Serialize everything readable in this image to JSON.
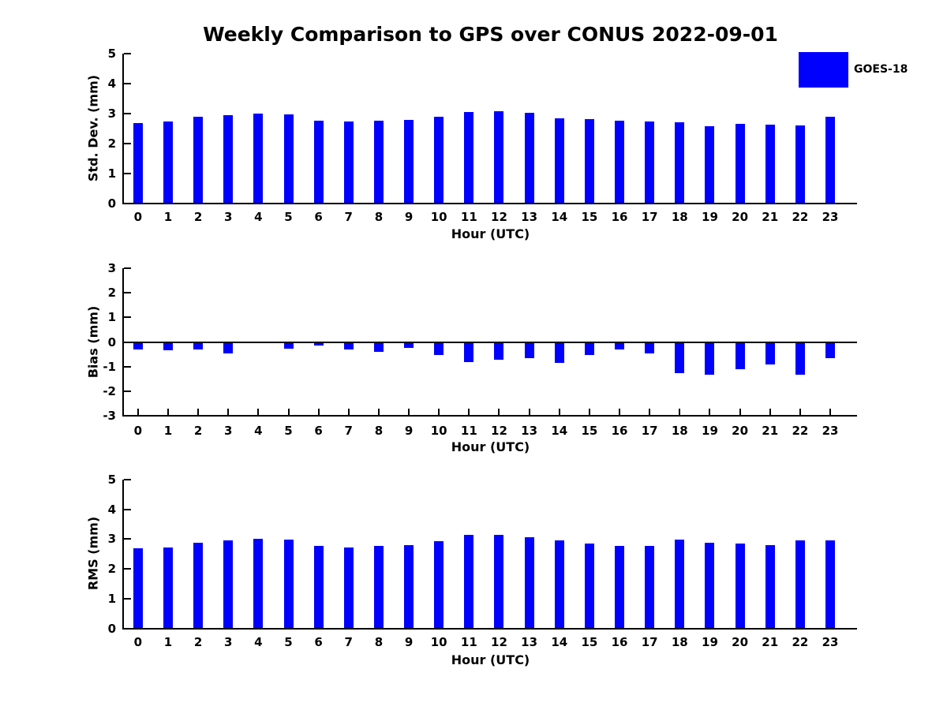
{
  "figure": {
    "title": "Weekly Comparison to GPS over CONUS 2022-09-01",
    "legend": {
      "label": "GOES-18",
      "color": "#0000ff"
    },
    "background_color": "#ffffff",
    "axis_color": "#000000"
  },
  "chart_data": [
    {
      "type": "bar",
      "series_name": "GOES-18",
      "bar_color": "#0000ff",
      "xlabel": "Hour (UTC)",
      "ylabel": "Std. Dev. (mm)",
      "ylim": [
        0,
        5
      ],
      "yticks": [
        0,
        1,
        2,
        3,
        4,
        5
      ],
      "grid": false,
      "legend_position": "outside-upper-right",
      "categories": [
        "0",
        "1",
        "2",
        "3",
        "4",
        "5",
        "6",
        "7",
        "8",
        "9",
        "10",
        "11",
        "12",
        "13",
        "14",
        "15",
        "16",
        "17",
        "18",
        "19",
        "20",
        "21",
        "22",
        "23"
      ],
      "values": [
        2.67,
        2.72,
        2.88,
        2.95,
        3.0,
        2.98,
        2.75,
        2.72,
        2.76,
        2.78,
        2.88,
        3.04,
        3.08,
        3.01,
        2.84,
        2.8,
        2.76,
        2.73,
        2.7,
        2.57,
        2.64,
        2.63,
        2.61,
        2.9
      ]
    },
    {
      "type": "bar",
      "series_name": "GOES-18",
      "bar_color": "#0000ff",
      "xlabel": "Hour (UTC)",
      "ylabel": "Bias (mm)",
      "ylim": [
        -3,
        3
      ],
      "yticks": [
        -3,
        -2,
        -1,
        0,
        1,
        2,
        3
      ],
      "grid": false,
      "categories": [
        "0",
        "1",
        "2",
        "3",
        "4",
        "5",
        "6",
        "7",
        "8",
        "9",
        "10",
        "11",
        "12",
        "13",
        "14",
        "15",
        "16",
        "17",
        "18",
        "19",
        "20",
        "21",
        "22",
        "23"
      ],
      "values": [
        -0.31,
        -0.33,
        -0.29,
        -0.48,
        -0.03,
        -0.26,
        -0.15,
        -0.3,
        -0.39,
        -0.23,
        -0.52,
        -0.82,
        -0.71,
        -0.66,
        -0.86,
        -0.52,
        -0.31,
        -0.45,
        -1.28,
        -1.32,
        -1.12,
        -0.92,
        -1.34,
        -0.66
      ]
    },
    {
      "type": "bar",
      "series_name": "GOES-18",
      "bar_color": "#0000ff",
      "xlabel": "Hour (UTC)",
      "ylabel": "RMS (mm)",
      "ylim": [
        0,
        5
      ],
      "yticks": [
        0,
        1,
        2,
        3,
        4,
        5
      ],
      "grid": false,
      "categories": [
        "0",
        "1",
        "2",
        "3",
        "4",
        "5",
        "6",
        "7",
        "8",
        "9",
        "10",
        "11",
        "12",
        "13",
        "14",
        "15",
        "16",
        "17",
        "18",
        "19",
        "20",
        "21",
        "22",
        "23"
      ],
      "values": [
        2.68,
        2.73,
        2.89,
        2.96,
        3.0,
        2.99,
        2.76,
        2.73,
        2.78,
        2.79,
        2.92,
        3.14,
        3.15,
        3.07,
        2.96,
        2.84,
        2.77,
        2.76,
        2.98,
        2.87,
        2.86,
        2.8,
        2.95,
        2.97
      ]
    }
  ]
}
